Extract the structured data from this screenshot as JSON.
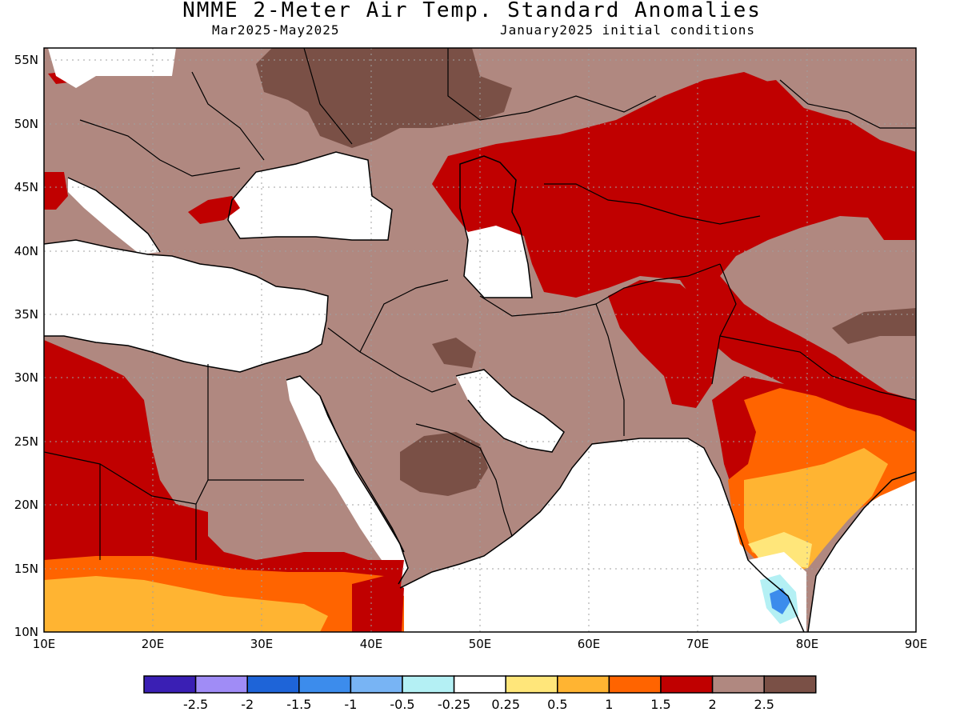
{
  "title": "NMME 2-Meter Air Temp. Standard Anomalies",
  "period": "Mar2025-May2025",
  "init": "January2025 initial conditions",
  "map": {
    "lon_ticks": [
      "10E",
      "20E",
      "30E",
      "40E",
      "50E",
      "60E",
      "70E",
      "80E",
      "90E"
    ],
    "lat_ticks": [
      "10N",
      "15N",
      "20N",
      "25N",
      "30N",
      "35N",
      "40N",
      "45N",
      "50N",
      "55N"
    ],
    "lon_range": [
      10,
      90
    ],
    "lat_range": [
      10,
      56
    ],
    "gridlines": "dotted",
    "dominant_anomaly_color": "#c00000",
    "ocean_color": "#ffffff"
  },
  "colorbar": {
    "colors": [
      "#3a1fb4",
      "#a08cf6",
      "#1e64d8",
      "#3c8cec",
      "#78b4f4",
      "#b4f0f4",
      "#ffffff",
      "#ffe67a",
      "#ffb432",
      "#ff6400",
      "#c00000",
      "#b08880",
      "#7a5046"
    ],
    "labels": [
      "-2.5",
      "-2",
      "-1.5",
      "-1",
      "-0.5",
      "-0.25",
      "0.25",
      "0.5",
      "1",
      "1.5",
      "2",
      "2.5"
    ]
  }
}
